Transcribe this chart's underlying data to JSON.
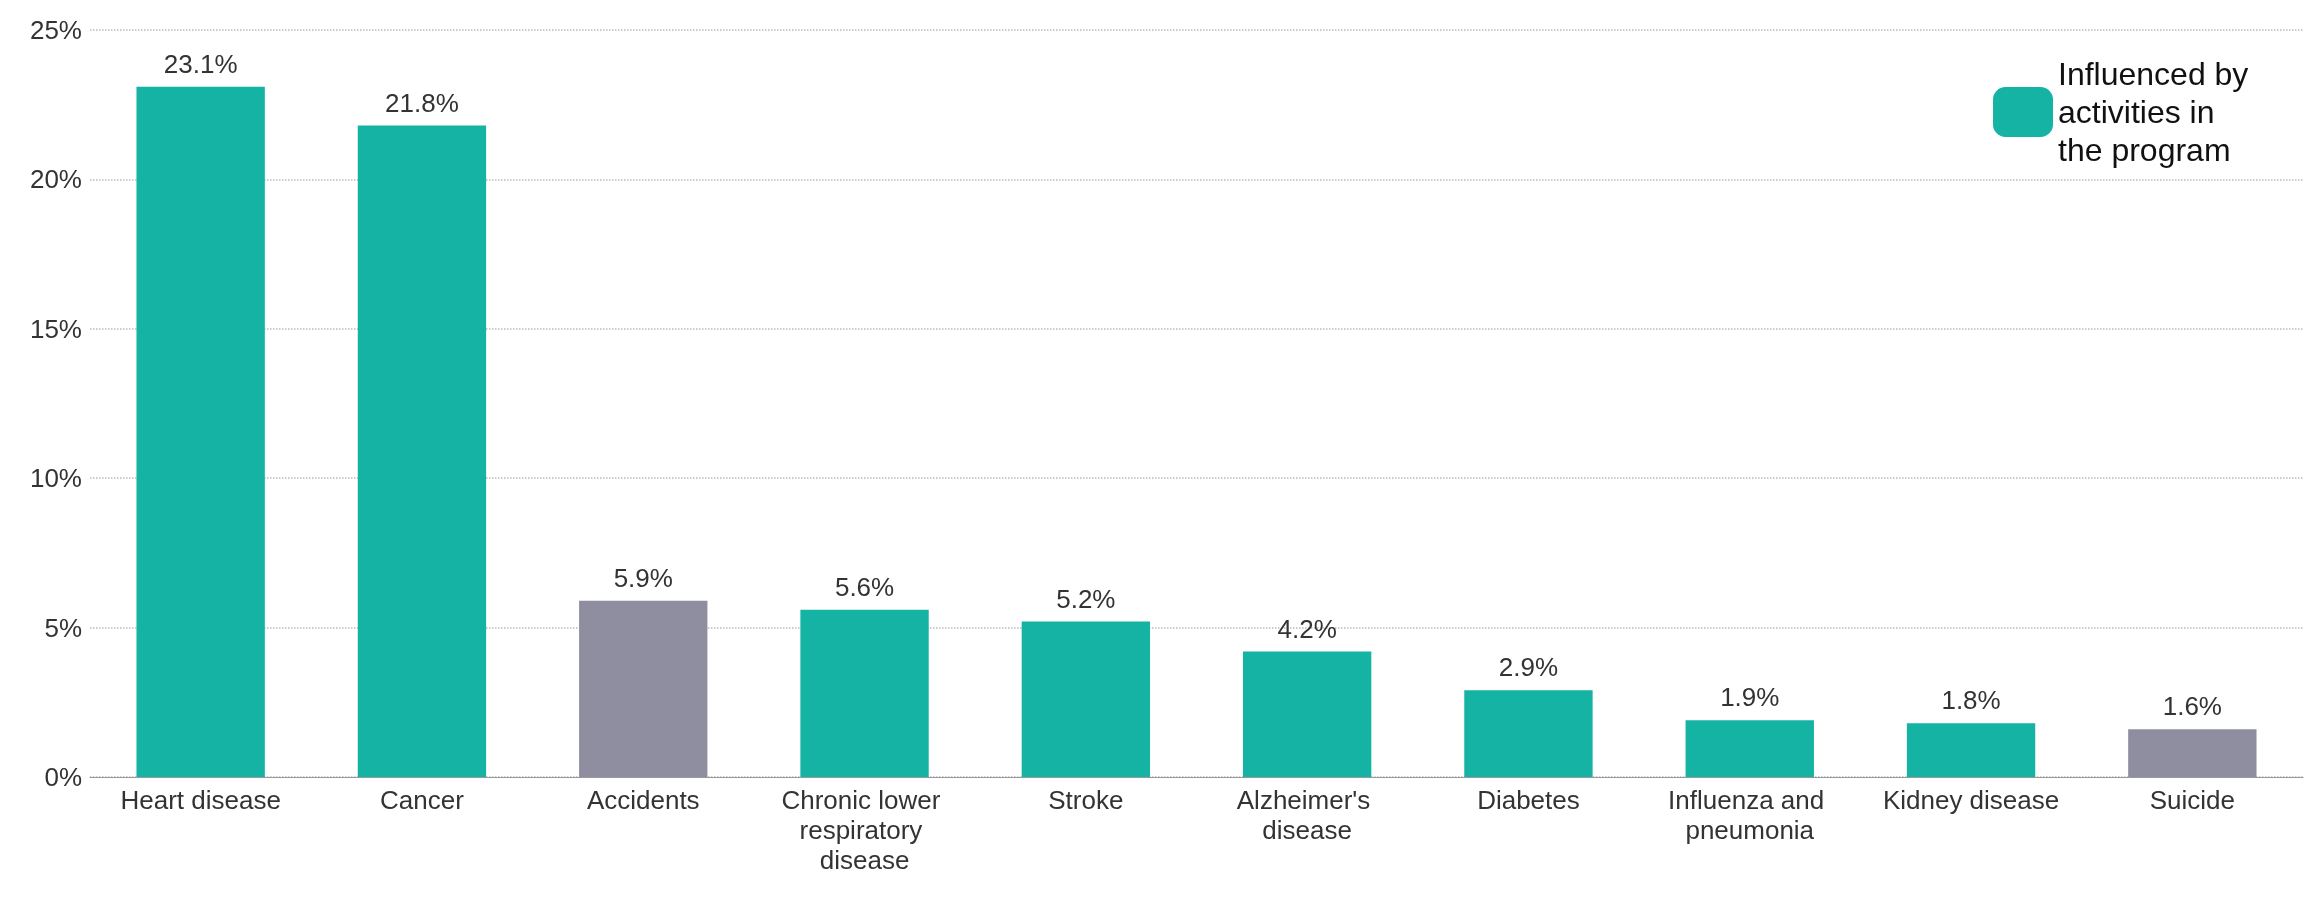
{
  "chart_data": {
    "type": "bar",
    "categories": [
      "Heart disease",
      "Cancer",
      "Accidents",
      "Chronic lower respiratory disease",
      "Stroke",
      "Alzheimer's disease",
      "Diabetes",
      "Influenza and pneumonia",
      "Kidney disease",
      "Suicide"
    ],
    "series": [
      {
        "name": "Influenced by activities in the program",
        "color": "#14b3a4",
        "values": [
          23.1,
          21.8,
          null,
          5.6,
          5.2,
          4.2,
          2.9,
          1.9,
          1.8,
          null
        ],
        "value_labels": [
          "23.1%",
          "21.8%",
          null,
          "5.6%",
          "5.2%",
          "4.2%",
          "2.9%",
          "1.9%",
          "1.8%",
          null
        ]
      },
      {
        "color": "#8e8ea0",
        "values": [
          null,
          null,
          5.9,
          null,
          null,
          null,
          null,
          null,
          null,
          1.6
        ],
        "value_labels": [
          null,
          null,
          "5.9%",
          null,
          null,
          null,
          null,
          null,
          null,
          "1.6%"
        ]
      }
    ],
    "ylim": [
      0,
      25
    ],
    "yticks": [
      {
        "value": 0,
        "label": "0%"
      },
      {
        "value": 5,
        "label": "5%"
      },
      {
        "value": 10,
        "label": "10%"
      },
      {
        "value": 15,
        "label": "15%"
      },
      {
        "value": 20,
        "label": "20%"
      },
      {
        "value": 25,
        "label": "25%"
      }
    ],
    "grid": "y",
    "legend": "top right"
  }
}
